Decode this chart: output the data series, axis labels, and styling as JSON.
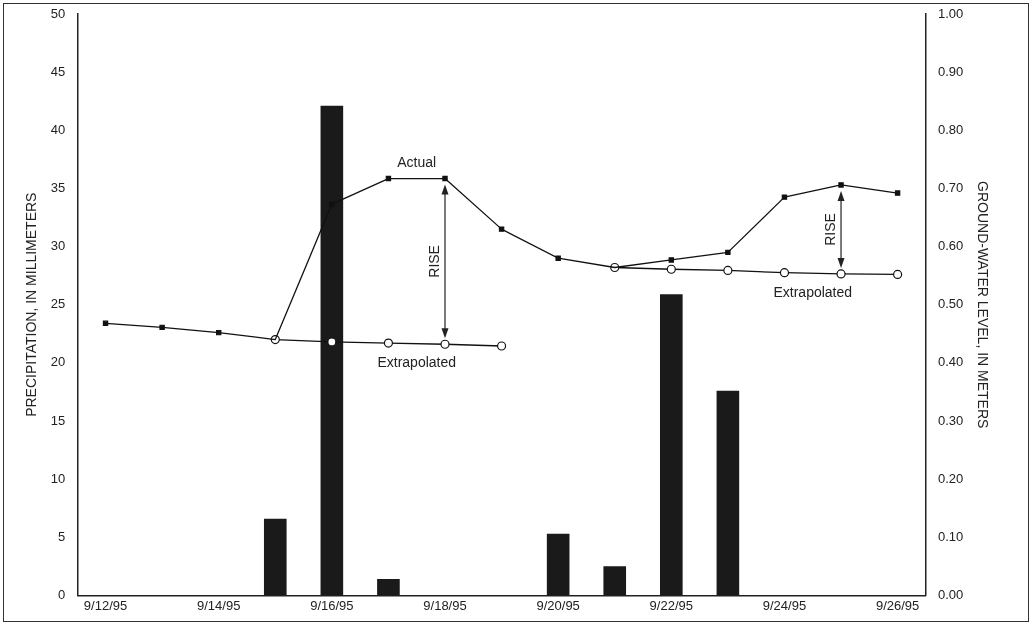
{
  "chart_data": {
    "type": "bar",
    "categories": [
      "9/12/95",
      null,
      "9/14/95",
      null,
      "9/16/95",
      null,
      "9/18/95",
      null,
      "9/20/95",
      null,
      "9/22/95",
      null,
      "9/24/95",
      null,
      "9/26/95"
    ],
    "series": [
      {
        "color": "#1a1a1a",
        "values": [
          0,
          0,
          0,
          6.6,
          42.1,
          1.4,
          0,
          0,
          5.3,
          2.5,
          25.9,
          17.6,
          0,
          0,
          0
        ]
      },
      {
        "type": "line",
        "name": "Actual",
        "axis": "y2",
        "color": "#111111",
        "marker": "square",
        "values": [
          0.468,
          0.461,
          0.452,
          0.44,
          0.673,
          0.717,
          0.717,
          0.63,
          0.58,
          0.564,
          0.577,
          0.59,
          0.685,
          0.706,
          0.692
        ]
      },
      {
        "type": "line",
        "name": "Extrapolated",
        "axis": "y2",
        "color": "#111111",
        "marker": "circle",
        "values": [
          null,
          null,
          null,
          0.44,
          0.436,
          0.434,
          0.432,
          0.429,
          null,
          null,
          null,
          null,
          null,
          null,
          null
        ]
      },
      {
        "type": "line",
        "name": "Extrapolated",
        "axis": "y2",
        "color": "#111111",
        "marker": "circle",
        "values": [
          null,
          null,
          null,
          null,
          null,
          null,
          null,
          null,
          null,
          0.564,
          0.561,
          0.559,
          0.555,
          0.553,
          0.552
        ]
      }
    ],
    "ylabel": "PRECIPITATION, IN MILLIMETERS",
    "y2label": "GROUND-WATER LEVEL, IN METERS",
    "ylim": [
      0,
      50
    ],
    "yticks": [
      0,
      5,
      10,
      15,
      20,
      25,
      30,
      35,
      40,
      45,
      50
    ],
    "y2lim": [
      0,
      1
    ],
    "y2ticks": [
      {
        "value": 0,
        "label": "0.00"
      },
      {
        "value": 0.1,
        "label": "0.10"
      },
      {
        "value": 0.2,
        "label": "0.20"
      },
      {
        "value": 0.3,
        "label": "0.30"
      },
      {
        "value": 0.4,
        "label": "0.40"
      },
      {
        "value": 0.5,
        "label": "0.50"
      },
      {
        "value": 0.6,
        "label": "0.60"
      },
      {
        "value": 0.7,
        "label": "0.70"
      },
      {
        "value": 0.8,
        "label": "0.80"
      },
      {
        "value": 0.9,
        "label": "0.90"
      },
      {
        "value": 1,
        "label": "1.00"
      }
    ],
    "annotations": [
      "RISE",
      "RISE"
    ]
  }
}
